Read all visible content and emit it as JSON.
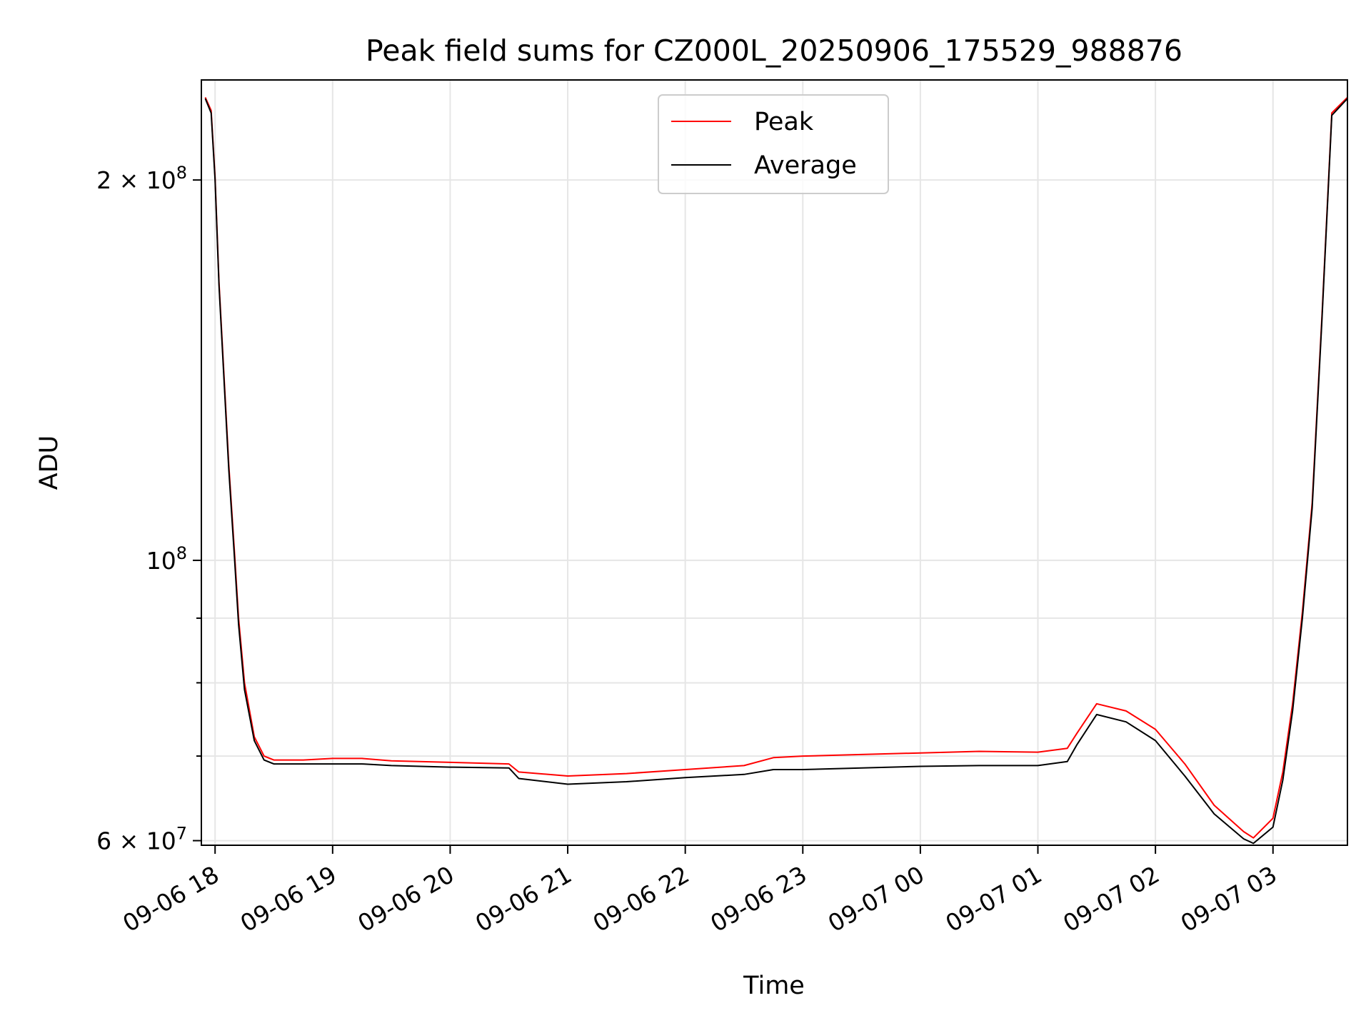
{
  "chart_data": {
    "type": "line",
    "title": "Peak field sums for CZ000L_20250906_175529_988876",
    "xlabel": "Time",
    "ylabel": "ADU",
    "yscale": "log",
    "xlim": [
      "2025-09-06 17:53",
      "2025-09-07 03:38"
    ],
    "ylim": [
      59500000,
      240000000
    ],
    "grid": true,
    "legend_position": "top-center",
    "colors": {
      "Peak": "#ff0000",
      "Average": "#000000",
      "grid": "#e6e6e6"
    },
    "x_ticks": [
      {
        "t": "2025-09-06 18:00",
        "label": "09-06 18"
      },
      {
        "t": "2025-09-06 19:00",
        "label": "09-06 19"
      },
      {
        "t": "2025-09-06 20:00",
        "label": "09-06 20"
      },
      {
        "t": "2025-09-06 21:00",
        "label": "09-06 21"
      },
      {
        "t": "2025-09-06 22:00",
        "label": "09-06 22"
      },
      {
        "t": "2025-09-06 23:00",
        "label": "09-06 23"
      },
      {
        "t": "2025-09-07 00:00",
        "label": "09-07 00"
      },
      {
        "t": "2025-09-07 01:00",
        "label": "09-07 01"
      },
      {
        "t": "2025-09-07 02:00",
        "label": "09-07 02"
      },
      {
        "t": "2025-09-07 03:00",
        "label": "09-07 03"
      }
    ],
    "y_major_ticks": [
      {
        "value": 60000000,
        "mant": "6",
        "exp": "7"
      },
      {
        "value": 100000000,
        "mant": "",
        "exp": "8"
      },
      {
        "value": 200000000,
        "mant": "2",
        "exp": "8"
      }
    ],
    "y_minor_ticks": [
      70000000,
      80000000,
      90000000
    ],
    "series": [
      {
        "name": "Average",
        "x": [
          "2025-09-06 17:55",
          "2025-09-06 17:58",
          "2025-09-06 18:00",
          "2025-09-06 18:02",
          "2025-09-06 18:05",
          "2025-09-06 18:07",
          "2025-09-06 18:10",
          "2025-09-06 18:12",
          "2025-09-06 18:15",
          "2025-09-06 18:20",
          "2025-09-06 18:25",
          "2025-09-06 18:30",
          "2025-09-06 18:45",
          "2025-09-06 19:00",
          "2025-09-06 19:15",
          "2025-09-06 19:30",
          "2025-09-06 20:00",
          "2025-09-06 20:30",
          "2025-09-06 20:35",
          "2025-09-06 21:00",
          "2025-09-06 21:30",
          "2025-09-06 22:00",
          "2025-09-06 22:30",
          "2025-09-06 22:45",
          "2025-09-06 23:00",
          "2025-09-06 23:30",
          "2025-09-07 00:00",
          "2025-09-07 00:30",
          "2025-09-07 01:00",
          "2025-09-07 01:15",
          "2025-09-07 01:20",
          "2025-09-07 01:30",
          "2025-09-07 01:45",
          "2025-09-07 02:00",
          "2025-09-07 02:15",
          "2025-09-07 02:30",
          "2025-09-07 02:45",
          "2025-09-07 02:50",
          "2025-09-07 03:00",
          "2025-09-07 03:05",
          "2025-09-07 03:10",
          "2025-09-07 03:15",
          "2025-09-07 03:20",
          "2025-09-07 03:25",
          "2025-09-07 03:30",
          "2025-09-07 03:38"
        ],
        "y": [
          232000000,
          226000000,
          200000000,
          165000000,
          135000000,
          118000000,
          100000000,
          89000000,
          79000000,
          72000000,
          69500000,
          69000000,
          69000000,
          69000000,
          69000000,
          68800000,
          68600000,
          68500000,
          67200000,
          66500000,
          66800000,
          67300000,
          67700000,
          68300000,
          68300000,
          68500000,
          68700000,
          68800000,
          68800000,
          69300000,
          71500000,
          75500000,
          74500000,
          72000000,
          67500000,
          63000000,
          60200000,
          59700000,
          61500000,
          67000000,
          76000000,
          90000000,
          110000000,
          155000000,
          225000000,
          232000000
        ]
      },
      {
        "name": "Peak",
        "x": [
          "2025-09-06 17:55",
          "2025-09-06 17:58",
          "2025-09-06 18:00",
          "2025-09-06 18:02",
          "2025-09-06 18:05",
          "2025-09-06 18:07",
          "2025-09-06 18:10",
          "2025-09-06 18:12",
          "2025-09-06 18:15",
          "2025-09-06 18:20",
          "2025-09-06 18:25",
          "2025-09-06 18:30",
          "2025-09-06 18:45",
          "2025-09-06 19:00",
          "2025-09-06 19:15",
          "2025-09-06 19:30",
          "2025-09-06 20:00",
          "2025-09-06 20:30",
          "2025-09-06 20:35",
          "2025-09-06 21:00",
          "2025-09-06 21:30",
          "2025-09-06 22:00",
          "2025-09-06 22:30",
          "2025-09-06 22:45",
          "2025-09-06 23:00",
          "2025-09-06 23:30",
          "2025-09-07 00:00",
          "2025-09-07 00:30",
          "2025-09-07 01:00",
          "2025-09-07 01:15",
          "2025-09-07 01:20",
          "2025-09-07 01:30",
          "2025-09-07 01:45",
          "2025-09-07 02:00",
          "2025-09-07 02:15",
          "2025-09-07 02:30",
          "2025-09-07 02:45",
          "2025-09-07 02:50",
          "2025-09-07 03:00",
          "2025-09-07 03:05",
          "2025-09-07 03:10",
          "2025-09-07 03:15",
          "2025-09-07 03:20",
          "2025-09-07 03:25",
          "2025-09-07 03:30",
          "2025-09-07 03:38"
        ],
        "y": [
          232500000,
          227000000,
          201000000,
          166000000,
          136000000,
          119000000,
          101000000,
          90000000,
          80000000,
          72500000,
          70000000,
          69500000,
          69500000,
          69700000,
          69700000,
          69400000,
          69200000,
          69000000,
          68000000,
          67500000,
          67800000,
          68300000,
          68800000,
          69800000,
          70000000,
          70200000,
          70400000,
          70600000,
          70500000,
          71000000,
          73000000,
          77000000,
          76000000,
          73500000,
          69000000,
          64000000,
          61000000,
          60300000,
          62500000,
          68000000,
          77000000,
          91000000,
          111000000,
          156000000,
          226000000,
          232500000
        ]
      }
    ]
  }
}
